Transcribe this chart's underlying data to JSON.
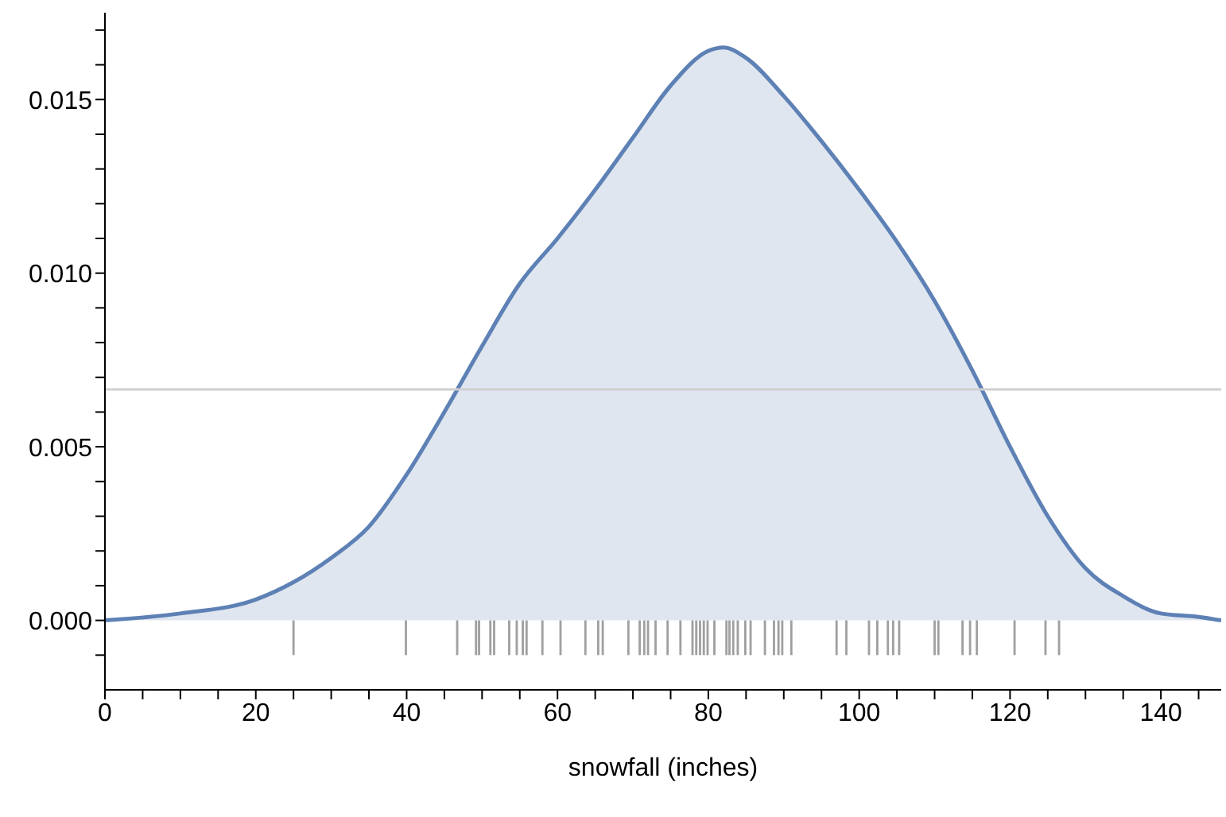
{
  "chart_data": {
    "type": "area",
    "xlabel": "snowfall (inches)",
    "xlim": [
      0,
      148
    ],
    "ylim": [
      -0.002,
      0.0175
    ],
    "xticks": [
      0,
      {
        "value": 5,
        "label": null
      },
      {
        "value": 10,
        "label": null
      },
      {
        "value": 15,
        "label": null
      },
      20,
      {
        "value": 25,
        "label": null
      },
      {
        "value": 30,
        "label": null
      },
      {
        "value": 35,
        "label": null
      },
      40,
      {
        "value": 45,
        "label": null
      },
      {
        "value": 50,
        "label": null
      },
      {
        "value": 55,
        "label": null
      },
      60,
      {
        "value": 65,
        "label": null
      },
      {
        "value": 70,
        "label": null
      },
      {
        "value": 75,
        "label": null
      },
      80,
      {
        "value": 85,
        "label": null
      },
      {
        "value": 90,
        "label": null
      },
      {
        "value": 95,
        "label": null
      },
      100,
      {
        "value": 105,
        "label": null
      },
      {
        "value": 110,
        "label": null
      },
      {
        "value": 115,
        "label": null
      },
      120,
      {
        "value": 125,
        "label": null
      },
      {
        "value": 130,
        "label": null
      },
      {
        "value": 135,
        "label": null
      },
      140,
      {
        "value": 145,
        "label": null
      }
    ],
    "yticks": [
      {
        "value": -0.001,
        "label": null
      },
      {
        "value": 0,
        "label": "0.000"
      },
      {
        "value": 0.001,
        "label": null
      },
      {
        "value": 0.002,
        "label": null
      },
      {
        "value": 0.003,
        "label": null
      },
      {
        "value": 0.004,
        "label": null
      },
      {
        "value": 0.005,
        "label": "0.005"
      },
      {
        "value": 0.006,
        "label": null
      },
      {
        "value": 0.007,
        "label": null
      },
      {
        "value": 0.008,
        "label": null
      },
      {
        "value": 0.009,
        "label": null
      },
      {
        "value": 0.01,
        "label": "0.010"
      },
      {
        "value": 0.011,
        "label": null
      },
      {
        "value": 0.012,
        "label": null
      },
      {
        "value": 0.013,
        "label": null
      },
      {
        "value": 0.014,
        "label": null
      },
      {
        "value": 0.015,
        "label": "0.015"
      },
      {
        "value": 0.016,
        "label": null
      },
      {
        "value": 0.017,
        "label": null
      }
    ],
    "grid": false,
    "ref_lines": [
      {
        "axis": "y",
        "value": 0.00665,
        "color": "#d0d0d0"
      }
    ],
    "series": [
      {
        "color": "#5e81b5",
        "x": [
          0,
          10,
          20,
          25,
          30,
          35,
          40,
          45,
          50,
          55,
          60,
          65,
          70,
          75,
          80,
          82,
          85,
          90,
          95,
          100,
          105,
          110,
          115,
          120,
          125,
          130,
          135,
          140,
          145,
          148
        ],
        "values": [
          0.0,
          0.0002,
          0.0006,
          0.0011,
          0.0018,
          0.0027,
          0.0042,
          0.006,
          0.0079,
          0.0097,
          0.011,
          0.0124,
          0.0139,
          0.0154,
          0.0164,
          0.0165,
          0.0162,
          0.0151,
          0.0138,
          0.0124,
          0.0109,
          0.0092,
          0.0072,
          0.005,
          0.003,
          0.0015,
          0.0007,
          0.0002,
          0.0001,
          0.0
        ]
      },
      {
        "type": "bar",
        "color": "#808080",
        "base": [
          -0.001,
          -0.001,
          -0.001,
          -0.001,
          -0.001,
          -0.001,
          -0.001,
          -0.001,
          -0.001,
          -0.001,
          -0.001,
          -0.001,
          -0.001,
          -0.001,
          -0.001,
          -0.001,
          -0.001,
          -0.001,
          -0.001,
          -0.001,
          -0.001,
          -0.001,
          -0.001,
          -0.001,
          -0.001,
          -0.001,
          -0.001,
          -0.001,
          -0.001,
          -0.001,
          -0.001,
          -0.001,
          -0.001,
          -0.001,
          -0.001,
          -0.001,
          -0.001,
          -0.001,
          -0.001,
          -0.001,
          -0.001,
          -0.001,
          -0.001,
          -0.001,
          -0.001,
          -0.001,
          -0.001,
          -0.001,
          -0.001,
          -0.001,
          -0.001,
          -0.001,
          -0.001,
          -0.001,
          -0.001
        ],
        "x": [
          25.0,
          39.9,
          46.7,
          49.2,
          49.6,
          51.1,
          51.6,
          53.6,
          54.6,
          55.4,
          55.9,
          58.0,
          60.4,
          63.7,
          65.4,
          66.0,
          69.4,
          70.9,
          71.5,
          72.0,
          73.0,
          74.6,
          76.3,
          77.9,
          78.4,
          78.9,
          79.4,
          79.9,
          80.8,
          82.4,
          82.8,
          83.3,
          83.9,
          84.9,
          85.6,
          87.5,
          88.7,
          89.3,
          89.8,
          91.0,
          97.0,
          98.3,
          101.3,
          102.4,
          103.8,
          104.5,
          105.3,
          110.0,
          110.5,
          113.7,
          114.7,
          115.6,
          120.6,
          124.7,
          126.5
        ],
        "values": [
          0.001,
          0.001,
          0.001,
          0.001,
          0.001,
          0.001,
          0.001,
          0.001,
          0.001,
          0.001,
          0.001,
          0.001,
          0.001,
          0.001,
          0.001,
          0.001,
          0.001,
          0.001,
          0.001,
          0.001,
          0.001,
          0.001,
          0.001,
          0.001,
          0.001,
          0.001,
          0.001,
          0.001,
          0.001,
          0.001,
          0.001,
          0.001,
          0.001,
          0.001,
          0.001,
          0.001,
          0.001,
          0.001,
          0.001,
          0.001,
          0.001,
          0.001,
          0.001,
          0.001,
          0.001,
          0.001,
          0.001,
          0.001,
          0.001,
          0.001,
          0.001,
          0.001,
          0.001,
          0.001,
          0.001
        ]
      }
    ]
  }
}
